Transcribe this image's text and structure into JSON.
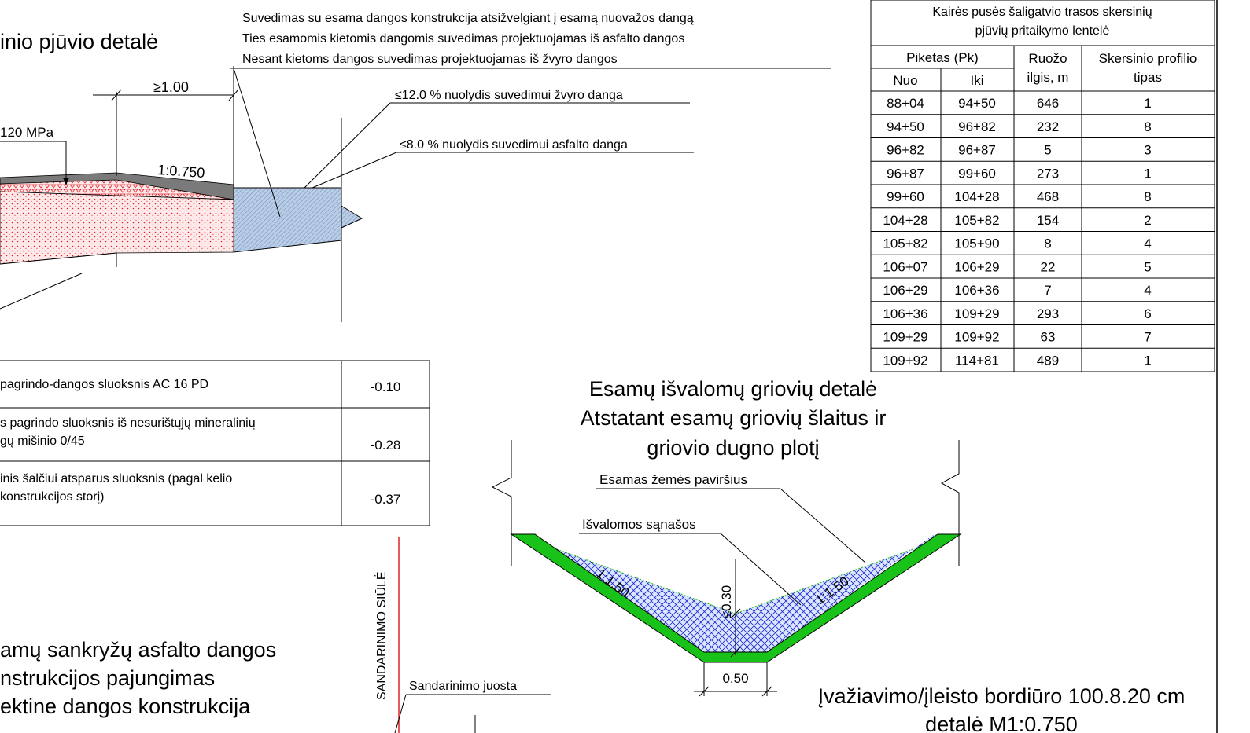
{
  "top_left": {
    "title": "inio pjūvio detalė",
    "label_mpa": "120 MPa",
    "dim_width": "≥1.00",
    "slope": "1:0.750"
  },
  "top_notes": [
    "Suvedimas su esama dangos konstrukcija atsižvelgiant į esamą nuovažos dangą",
    "Ties esamomis kietomis dangomis suvedimas projektuojamas iš asfalto dangos",
    "Nesant kietoms dangos suvedimas projektuojamas iš žvyro dangos"
  ],
  "slope_notes": {
    "gravel": "≤12.0 % nuolydis suvedimui žvyro danga",
    "asphalt": "≤8.0 % nuolydis suvedimui asfalto danga"
  },
  "layers_table": [
    {
      "lines": [
        "pagrindo-dangos sluoksnis AC 16 PD"
      ],
      "value": "-0.10"
    },
    {
      "lines": [
        "s pagrindo sluoksnis iš nesurištųjų mineralinių",
        "gų mišinio 0/45"
      ],
      "value": "-0.28"
    },
    {
      "lines": [
        "inis šalčiui atsparus sluoksnis (pagal kelio",
        " konstrukcijos storį)"
      ],
      "value": "-0.37"
    }
  ],
  "profile_table": {
    "title_lines": [
      "Kairės pusės šaligatvio trasos skersinių",
      "pjūvių pritaikymo lentelė"
    ],
    "header": {
      "piketas": "Piketas (Pk)",
      "nuo": "Nuo",
      "iki": "Iki",
      "ruozo": [
        "Ruožo",
        "ilgis, m"
      ],
      "tipas": [
        "Skersinio profilio",
        "tipas"
      ]
    },
    "rows": [
      [
        "88+04",
        "94+50",
        "646",
        "1"
      ],
      [
        "94+50",
        "96+82",
        "232",
        "8"
      ],
      [
        "96+82",
        "96+87",
        "5",
        "3"
      ],
      [
        "96+87",
        "99+60",
        "273",
        "1"
      ],
      [
        "99+60",
        "104+28",
        "468",
        "8"
      ],
      [
        "104+28",
        "105+82",
        "154",
        "2"
      ],
      [
        "105+82",
        "105+90",
        "8",
        "4"
      ],
      [
        "106+07",
        "106+29",
        "22",
        "5"
      ],
      [
        "106+29",
        "106+36",
        "7",
        "4"
      ],
      [
        "106+36",
        "109+29",
        "293",
        "6"
      ],
      [
        "109+29",
        "109+92",
        "63",
        "7"
      ],
      [
        "109+92",
        "114+81",
        "489",
        "1"
      ]
    ]
  },
  "ditch": {
    "title_lines": [
      "Esamų išvalomų griovių detalė",
      "Atstatant esamų griovių šlaitus ir",
      "griovio dugno plotį"
    ],
    "ground_label": "Esamas žemės paviršius",
    "sediment_label": "Išvalomos sąnašos",
    "slope_left": "1:1.50",
    "slope_right": "1:1.50",
    "depth": "≤0.30",
    "bottom_width": "0.50"
  },
  "bottom_left": {
    "title_lines": [
      "amų sankryžų asfalto dangos",
      "nstrukcijos pajungimas",
      "ektine dangos konstrukcija"
    ],
    "seam_label": "SANDARINIMO SIŪLĖ",
    "tape_label": "Sandarinimo juosta"
  },
  "kerb_title_lines": [
    "Įvažiavimo/įleisto bordiūro 100.8.20 cm",
    "detalė M1:0.750"
  ],
  "colors": {
    "asphalt": "#7a7a7a",
    "gravel_fill": "#fde9e9",
    "pattern_red": "#e0202a",
    "existing_fill": "#b9cde6",
    "ditch_green": "#19c219",
    "sediment_fill": "#dde6ff",
    "sediment_hatch": "#1a2ad6"
  }
}
